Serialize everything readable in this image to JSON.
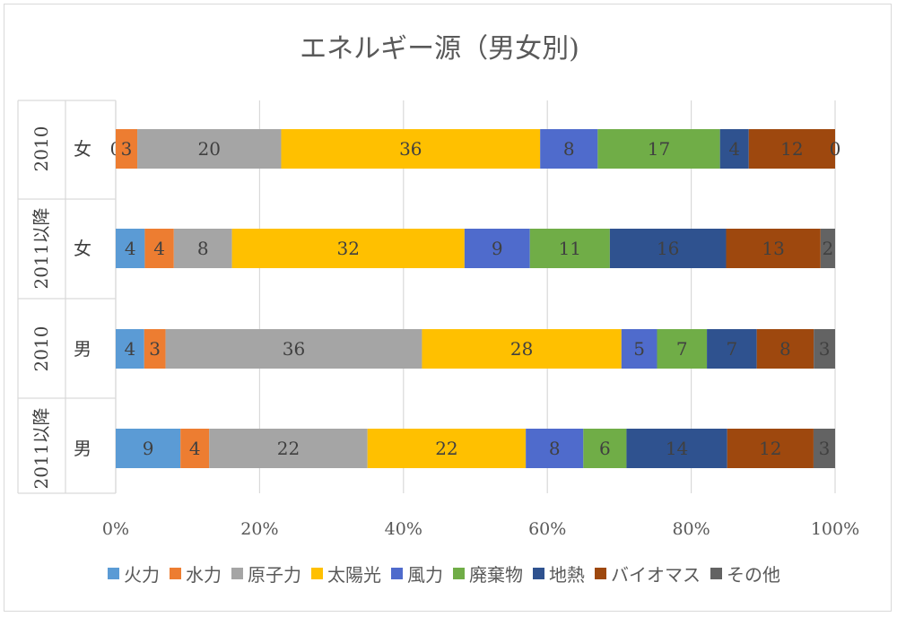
{
  "chart_data": {
    "type": "bar",
    "orientation": "horizontal",
    "stacked": "percent",
    "title": "エネルギー源（男女別)",
    "groups": [
      {
        "outer": "2010",
        "inner": "女"
      },
      {
        "outer": "2011以降",
        "inner": "女"
      },
      {
        "outer": "2010",
        "inner": "男"
      },
      {
        "outer": "2011以降",
        "inner": "男"
      }
    ],
    "series": [
      {
        "name": "火力",
        "color": "#5b9bd5",
        "values": [
          0,
          4,
          4,
          9
        ]
      },
      {
        "name": "水力",
        "color": "#ed7d31",
        "values": [
          3,
          4,
          3,
          4
        ]
      },
      {
        "name": "原子力",
        "color": "#a5a5a5",
        "values": [
          20,
          8,
          36,
          22
        ]
      },
      {
        "name": "太陽光",
        "color": "#ffc000",
        "values": [
          36,
          32,
          28,
          22
        ]
      },
      {
        "name": "風力",
        "color": "#4f6bcc",
        "values": [
          8,
          9,
          5,
          8
        ]
      },
      {
        "name": "廃棄物",
        "color": "#70ad47",
        "values": [
          17,
          11,
          7,
          6
        ]
      },
      {
        "name": "地熱",
        "color": "#2f528f",
        "values": [
          4,
          16,
          7,
          14
        ]
      },
      {
        "name": "バイオマス",
        "color": "#9e480e",
        "values": [
          12,
          13,
          8,
          12
        ]
      },
      {
        "name": "その他",
        "color": "#636363",
        "values": [
          0,
          2,
          3,
          3
        ]
      }
    ],
    "xticks": [
      "0%",
      "20%",
      "40%",
      "60%",
      "80%",
      "100%"
    ],
    "xlim": [
      0,
      100
    ],
    "grid": true,
    "legend": "bottom"
  }
}
